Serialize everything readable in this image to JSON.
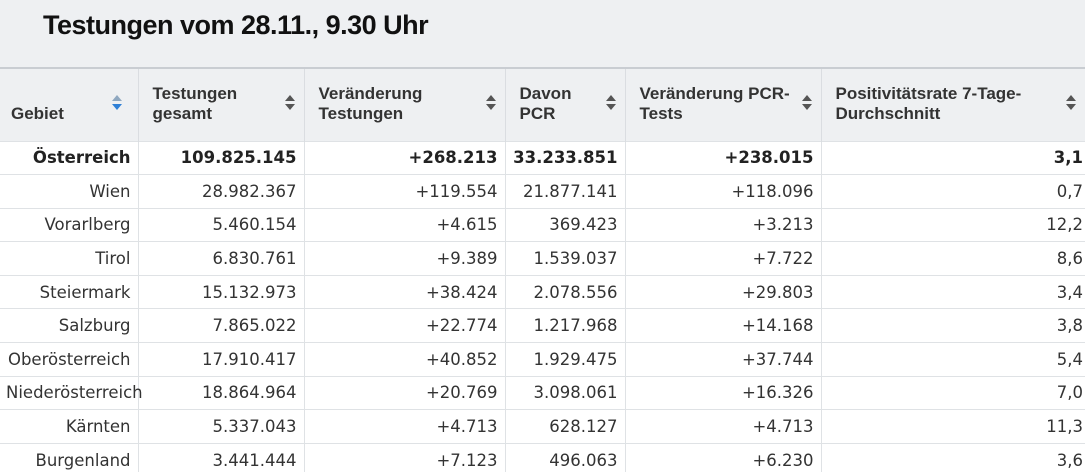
{
  "title": "Testungen vom 28.11., 9.30 Uhr",
  "columns": [
    "Gebiet",
    "Testungen gesamt",
    "Veränderung Testungen",
    "Davon PCR",
    "Veränderung PCR-Tests",
    "Positivitätsrate 7-Tage-Durchschnitt"
  ],
  "sort": {
    "column": "Gebiet",
    "direction": "descending",
    "active_color": "#2f80d6"
  },
  "rows": [
    [
      "Österreich",
      "109.825.145",
      "+268.213",
      "33.233.851",
      "+238.015",
      "3,1"
    ],
    [
      "Wien",
      "28.982.367",
      "+119.554",
      "21.877.141",
      "+118.096",
      "0,7"
    ],
    [
      "Vorarlberg",
      "5.460.154",
      "+4.615",
      "369.423",
      "+3.213",
      "12,2"
    ],
    [
      "Tirol",
      "6.830.761",
      "+9.389",
      "1.539.037",
      "+7.722",
      "8,6"
    ],
    [
      "Steiermark",
      "15.132.973",
      "+38.424",
      "2.078.556",
      "+29.803",
      "3,4"
    ],
    [
      "Salzburg",
      "7.865.022",
      "+22.774",
      "1.217.968",
      "+14.168",
      "3,8"
    ],
    [
      "Oberösterreich",
      "17.910.417",
      "+40.852",
      "1.929.475",
      "+37.744",
      "5,4"
    ],
    [
      "Niederösterreich",
      "18.864.964",
      "+20.769",
      "3.098.061",
      "+16.326",
      "7,0"
    ],
    [
      "Kärnten",
      "5.337.043",
      "+4.713",
      "628.127",
      "+4.713",
      "11,3"
    ],
    [
      "Burgenland",
      "3.441.444",
      "+7.123",
      "496.063",
      "+6.230",
      "3,6"
    ]
  ]
}
